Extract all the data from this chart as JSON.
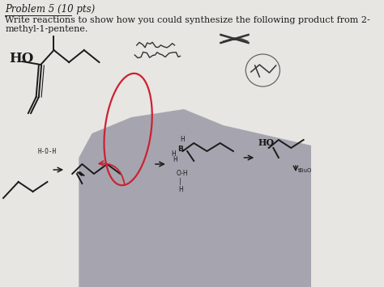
{
  "figsize": [
    4.74,
    3.55
  ],
  "dpi": 100,
  "paper_color": "#e8e6e2",
  "shadow_color": "#8a8a9a",
  "title": "Problem 5 (10 pts)",
  "body_line1": "Write reactions to show how you could synthesize the following product from 2-",
  "body_line2": "methyl-1-pentene.",
  "title_fontsize": 8.5,
  "body_fontsize": 8.0,
  "text_color": "#1a1a1a",
  "line_color": "#1a1a1a",
  "red_color": "#cc2233"
}
